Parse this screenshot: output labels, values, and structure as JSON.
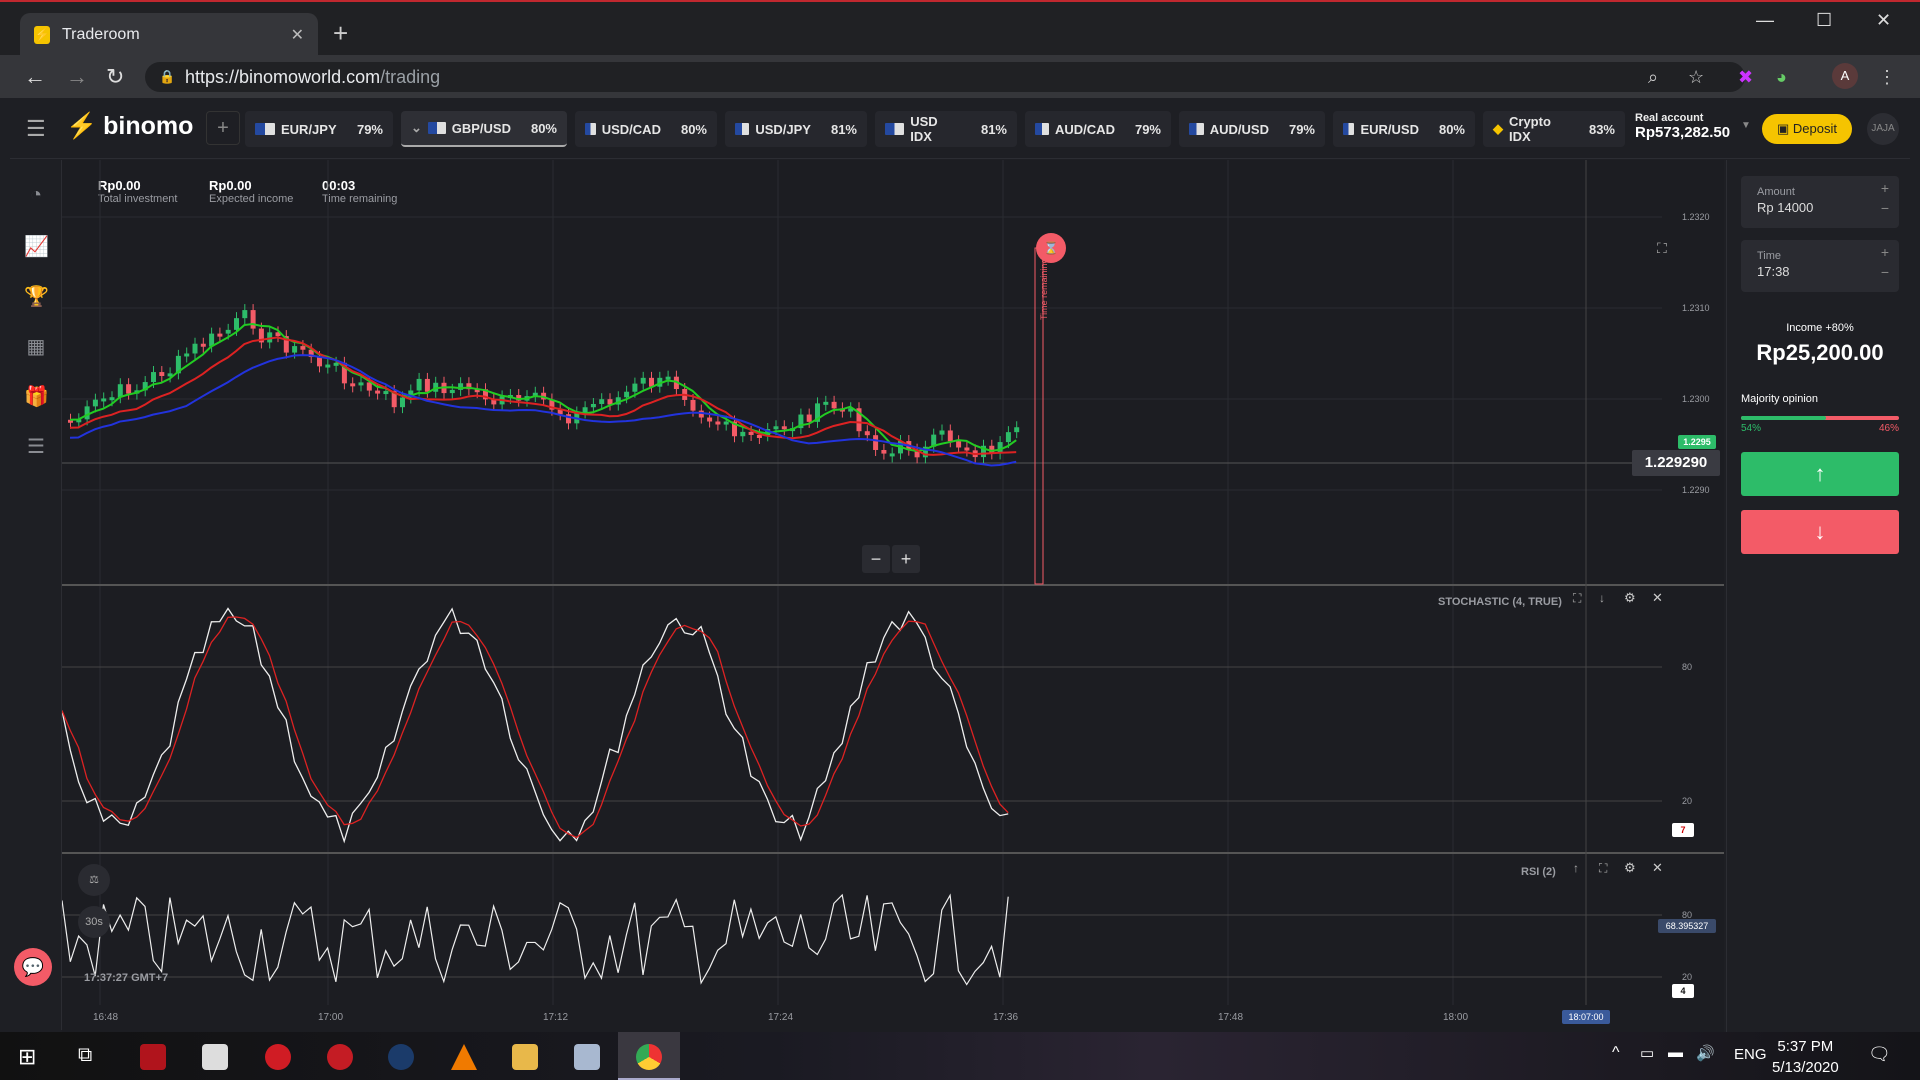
{
  "browser": {
    "tab_title": "Traderoom",
    "url_host": "https://binomoworld.com",
    "url_path": "/trading"
  },
  "app": {
    "logo": "binomo",
    "assets": [
      {
        "name": "EUR/JPY",
        "pct": "79%"
      },
      {
        "name": "GBP/USD",
        "pct": "80%",
        "active": true
      },
      {
        "name": "USD/CAD",
        "pct": "80%"
      },
      {
        "name": "USD/JPY",
        "pct": "81%"
      },
      {
        "name": "USD IDX",
        "pct": "81%"
      },
      {
        "name": "AUD/CAD",
        "pct": "79%"
      },
      {
        "name": "AUD/USD",
        "pct": "79%"
      },
      {
        "name": "EUR/USD",
        "pct": "80%"
      },
      {
        "name": "Crypto IDX",
        "pct": "83%"
      }
    ],
    "account_label": "Real account",
    "account_balance": "Rp573,282.50",
    "deposit_label": "Deposit",
    "avatar_text": "JAJA"
  },
  "stats": {
    "investment_value": "Rp0.00",
    "investment_label": "Total investment",
    "income_value": "Rp0.00",
    "income_label": "Expected income",
    "time_value": "00:03",
    "time_label": "Time remaining"
  },
  "chart_data": {
    "type": "line",
    "y_ticks": [
      "1.2320",
      "1.2310",
      "1.2300",
      "1.2290"
    ],
    "x_ticks": [
      "16:48",
      "17:00",
      "17:12",
      "17:24",
      "17:36",
      "17:48",
      "18:00"
    ],
    "current_price": "1.229290",
    "price_badge": "1.2295",
    "expiry_time_label": "18:07:00",
    "time_remaining_label": "Time remaining",
    "interval": "30s",
    "clock": "17:37:27 GMT+7",
    "stochastic": {
      "name": "STOCHASTIC (4, TRUE)",
      "levels": [
        "80",
        "20"
      ],
      "value_badge": "7"
    },
    "rsi": {
      "name": "RSI (2)",
      "levels": [
        "80",
        "20"
      ],
      "value_badge": "68.395327",
      "last_badge": "4"
    }
  },
  "panel": {
    "amount_label": "Amount",
    "amount_value": "Rp 14000",
    "time_label": "Time",
    "time_value": "17:38",
    "income_label": "Income +80%",
    "income_value": "Rp25,200.00",
    "majority_label": "Majority opinion",
    "majority_up": "54%",
    "majority_down": "46%",
    "majority_up_fraction": 0.54
  },
  "taskbar": {
    "lang": "ENG",
    "time": "5:37 PM",
    "date": "5/13/2020"
  },
  "colors": {
    "up": "#2dbc69",
    "down": "#f35b67",
    "accent": "#f5c400"
  }
}
